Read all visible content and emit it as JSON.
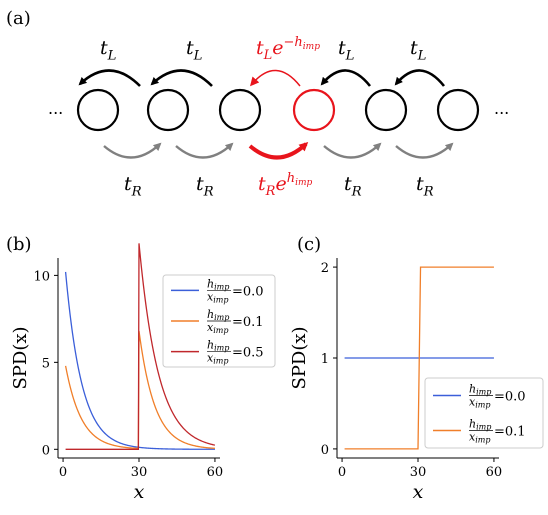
{
  "panel_labels": {
    "a": "(a)",
    "b": "(b)",
    "c": "(c)"
  },
  "diagram": {
    "ellipsis": "...",
    "hop_left": "t",
    "hop_left_sub": "L",
    "hop_right": "t",
    "hop_right_sub": "R",
    "imp_left_exp": "−h",
    "imp_left_exp_sub": "imp",
    "imp_right_exp": "h",
    "imp_right_exp_sub": "imp",
    "e": "e",
    "colors": {
      "normal": "#000000",
      "impurity": "#e8141c",
      "right_arrow": "#808080"
    }
  },
  "legend_frac": {
    "num": "h",
    "num_sub": "imp",
    "den": "x",
    "den_sub": "imp"
  },
  "chart_data": [
    {
      "type": "line",
      "panel": "(b)",
      "xlabel": "x",
      "ylabel": "SPD(x)",
      "xlim": [
        -2,
        62
      ],
      "ylim": [
        -0.5,
        11
      ],
      "xticks": [
        0,
        30,
        60
      ],
      "yticks": [
        0,
        5,
        10
      ],
      "legend_position": "top-right",
      "series": [
        {
          "name": "=0.0",
          "color": "#3b5fd9",
          "model": "decay",
          "amp": 10.2,
          "rate": 0.155,
          "x0": 1
        },
        {
          "name": "=0.1",
          "color": "#f07f2a",
          "model": "decay_peak",
          "amp": 4.8,
          "rate": 0.16,
          "x0": 1,
          "peak": 5.8,
          "peak_rate": 0.16
        },
        {
          "name": "=0.5",
          "color": "#c0282c",
          "model": "decay_peak",
          "amp": 0.0,
          "rate": 0.16,
          "x0": 1,
          "peak": 10.4,
          "peak_rate": 0.13
        }
      ]
    },
    {
      "type": "line",
      "panel": "(c)",
      "xlabel": "x",
      "ylabel": "SPD(x)",
      "xlim": [
        -2,
        62
      ],
      "ylim": [
        -0.1,
        2.1
      ],
      "xticks": [
        0,
        30,
        60
      ],
      "yticks": [
        0,
        1,
        2
      ],
      "legend_position": "bottom-right",
      "series": [
        {
          "name": "=0.0",
          "color": "#3b5fd9",
          "x": [
            1,
            60
          ],
          "y": [
            1,
            1
          ]
        },
        {
          "name": "=0.1",
          "color": "#f07f2a",
          "x": [
            1,
            30,
            31,
            60
          ],
          "y": [
            0,
            0,
            2,
            2
          ]
        }
      ]
    }
  ]
}
